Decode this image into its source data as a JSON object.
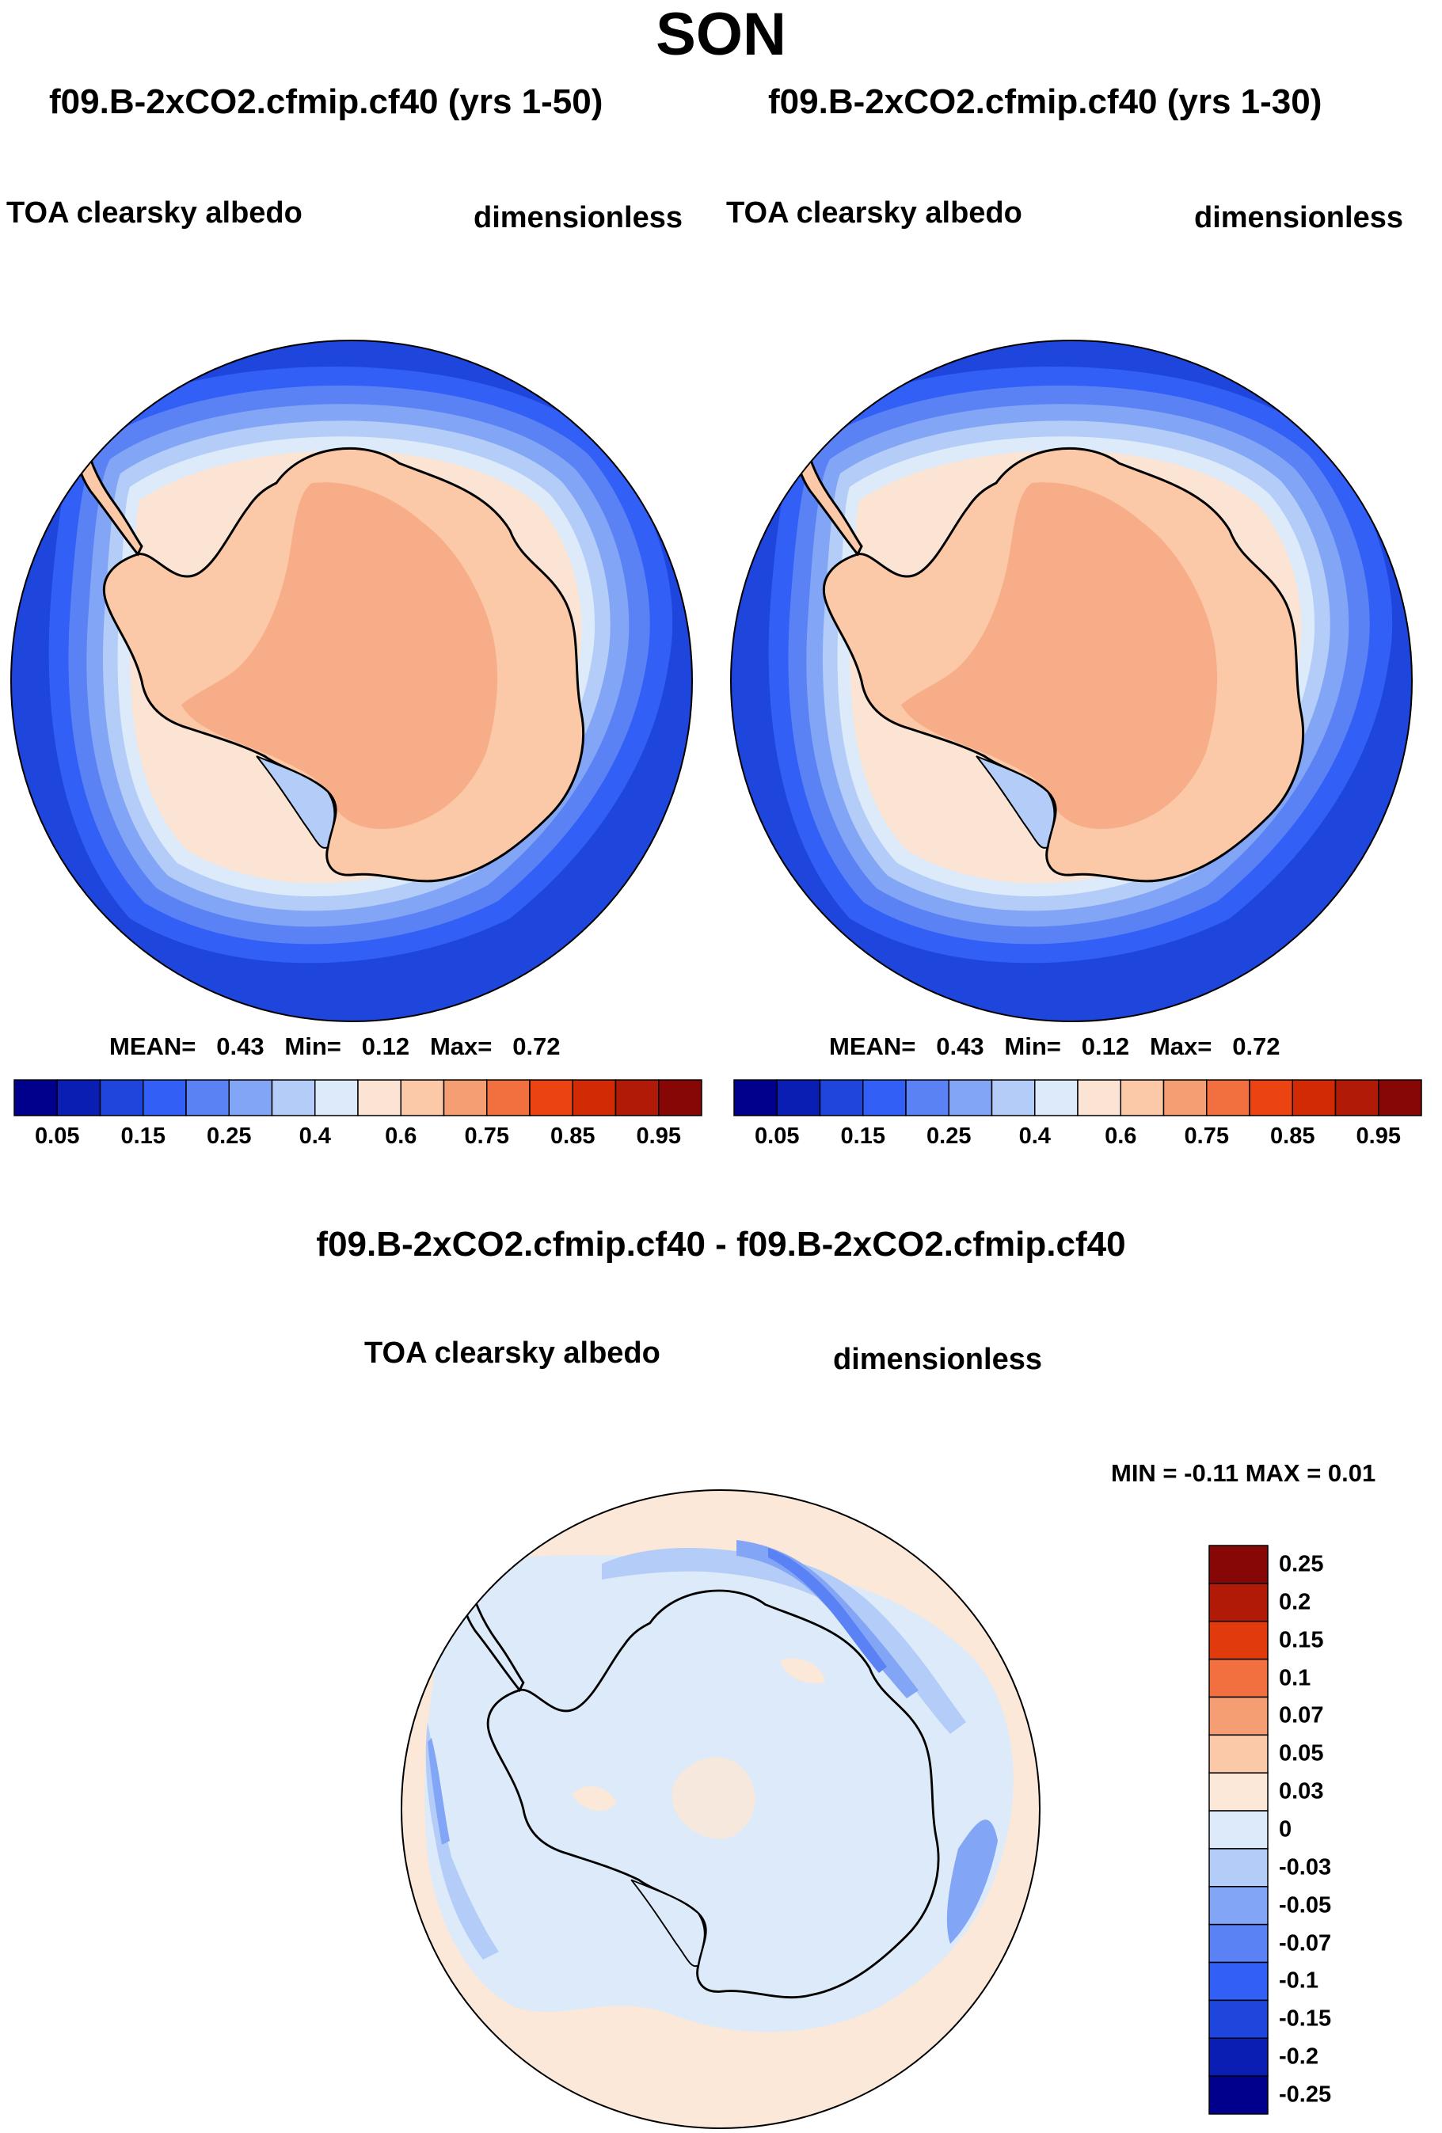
{
  "title": "SON",
  "panels": [
    {
      "case": "f09.B-2xCO2.cfmip.cf40 (yrs 1-50)",
      "field": "TOA clearsky albedo",
      "units": "dimensionless",
      "stats": {
        "mean_label": "MEAN=",
        "mean": "0.43",
        "min_label": "Min=",
        "min": "0.12",
        "max_label": "Max=",
        "max": "0.72"
      }
    },
    {
      "case": "f09.B-2xCO2.cfmip.cf40 (yrs 1-30)",
      "field": "TOA clearsky albedo",
      "units": "dimensionless",
      "stats": {
        "mean_label": "MEAN=",
        "mean": "0.43",
        "min_label": "Min=",
        "min": "0.12",
        "max_label": "Max=",
        "max": "0.72"
      }
    }
  ],
  "albedo_colorbar": {
    "colors": [
      "#00008c",
      "#0a1eb4",
      "#1e46dc",
      "#325ff5",
      "#5a82f5",
      "#82a5f5",
      "#b4cdf8",
      "#dceafa",
      "#fbe4d3",
      "#fbc8a8",
      "#f59d73",
      "#f2703f",
      "#ec4313",
      "#d12a05",
      "#b01a06",
      "#870606"
    ],
    "labels": [
      "0.05",
      "0.15",
      "0.25",
      "0.4",
      "0.6",
      "0.75",
      "0.85",
      "0.95"
    ],
    "label_positions": [
      1,
      3,
      5,
      7,
      9,
      11,
      13,
      15
    ]
  },
  "difference_panel": {
    "title": "f09.B-2xCO2.cfmip.cf40 - f09.B-2xCO2.cfmip.cf40",
    "field": "TOA clearsky albedo",
    "units": "dimensionless",
    "minmax": "MIN =  -0.11 MAX =   0.01"
  },
  "difference_colorbar": {
    "colors_top_to_bottom": [
      "#870606",
      "#b01a06",
      "#e03a0d",
      "#f2703f",
      "#f59d73",
      "#fbc8a8",
      "#fbe8d8",
      "#dceafa",
      "#b4cdf8",
      "#82a5f5",
      "#5a82f5",
      "#325ff5",
      "#1e46dc",
      "#0a1eb4",
      "#00008c"
    ],
    "labels": [
      "0.25",
      "0.2",
      "0.15",
      "0.1",
      "0.07",
      "0.05",
      "0.03",
      "0",
      "-0.03",
      "-0.05",
      "-0.07",
      "-0.1",
      "-0.15",
      "-0.2",
      "-0.25"
    ]
  },
  "map_colors": {
    "ocean_deep": "#1e46dc",
    "ocean_mid": "#325ff5",
    "ocean_light": "#82a5f5",
    "sea_ice_edge": "#dceafa",
    "sea_ice": "#fbe4d3",
    "coast_ice": "#fbc8a8",
    "plateau": "#f7ad88",
    "diff_positive": "#fbe8d8",
    "diff_negative": "#dceafa",
    "diff_neg2": "#b4cdf8",
    "diff_neg3": "#82a5f5",
    "diff_neg4": "#5a82f5"
  }
}
